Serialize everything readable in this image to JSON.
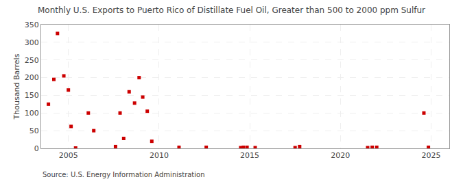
{
  "chart_data": {
    "type": "scatter",
    "title": "Monthly U.S. Exports to Puerto Rico of Distillate Fuel Oil, Greater than 500 to 2000 ppm Sulfur",
    "ylabel": "Thousand Barrels",
    "annotations": [
      "Source: U.S. Energy Information Administration"
    ],
    "x": [
      2003.9,
      2004.2,
      2004.4,
      2004.75,
      2005.0,
      2005.15,
      2005.4,
      2006.1,
      2006.4,
      2007.6,
      2007.85,
      2008.05,
      2008.35,
      2008.65,
      2008.9,
      2009.1,
      2009.35,
      2009.6,
      2011.1,
      2012.6,
      2014.5,
      2014.65,
      2014.85,
      2015.3,
      2017.5,
      2017.75,
      2021.5,
      2021.75,
      2022.0,
      2024.6,
      2024.85
    ],
    "values": [
      125,
      195,
      325,
      205,
      165,
      62,
      1,
      100,
      50,
      5,
      100,
      28,
      160,
      128,
      200,
      145,
      105,
      20,
      3,
      3,
      2,
      3,
      3,
      2,
      2,
      5,
      2,
      3,
      3,
      100,
      3
    ],
    "color": "#cc0000",
    "marker": "square",
    "xlim": [
      2003.5,
      2026.0
    ],
    "ylim": [
      0,
      350
    ],
    "xticks": [
      2005,
      2010,
      2015,
      2020,
      2025
    ],
    "yticks": [
      0,
      50,
      100,
      150,
      200,
      250,
      300,
      350
    ],
    "grid": true
  }
}
